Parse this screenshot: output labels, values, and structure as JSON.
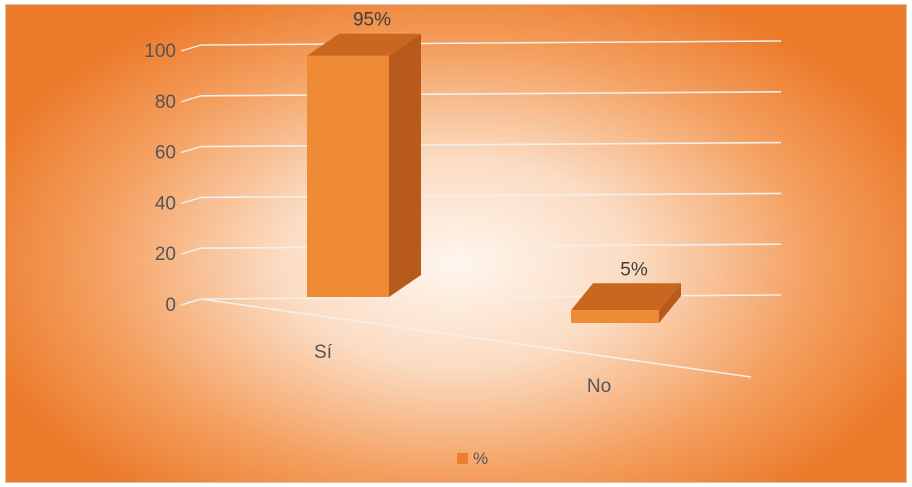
{
  "chart_data": {
    "type": "bar",
    "style": "3d-column",
    "categories": [
      "Sí",
      "No"
    ],
    "series": [
      {
        "name": "%",
        "values": [
          95,
          5
        ],
        "labels": [
          "95%",
          "5%"
        ]
      }
    ],
    "yticks": [
      "0",
      "20",
      "40",
      "60",
      "80",
      "100"
    ],
    "ylim": [
      0,
      100
    ],
    "grid": true,
    "legend": "bottom",
    "colors": {
      "bar_front": "#ef8a35",
      "bar_side": "#b75a1c",
      "bar_top": "#c9661f",
      "legend_swatch": "#ef7d2e",
      "grid": "#f4efea"
    }
  }
}
